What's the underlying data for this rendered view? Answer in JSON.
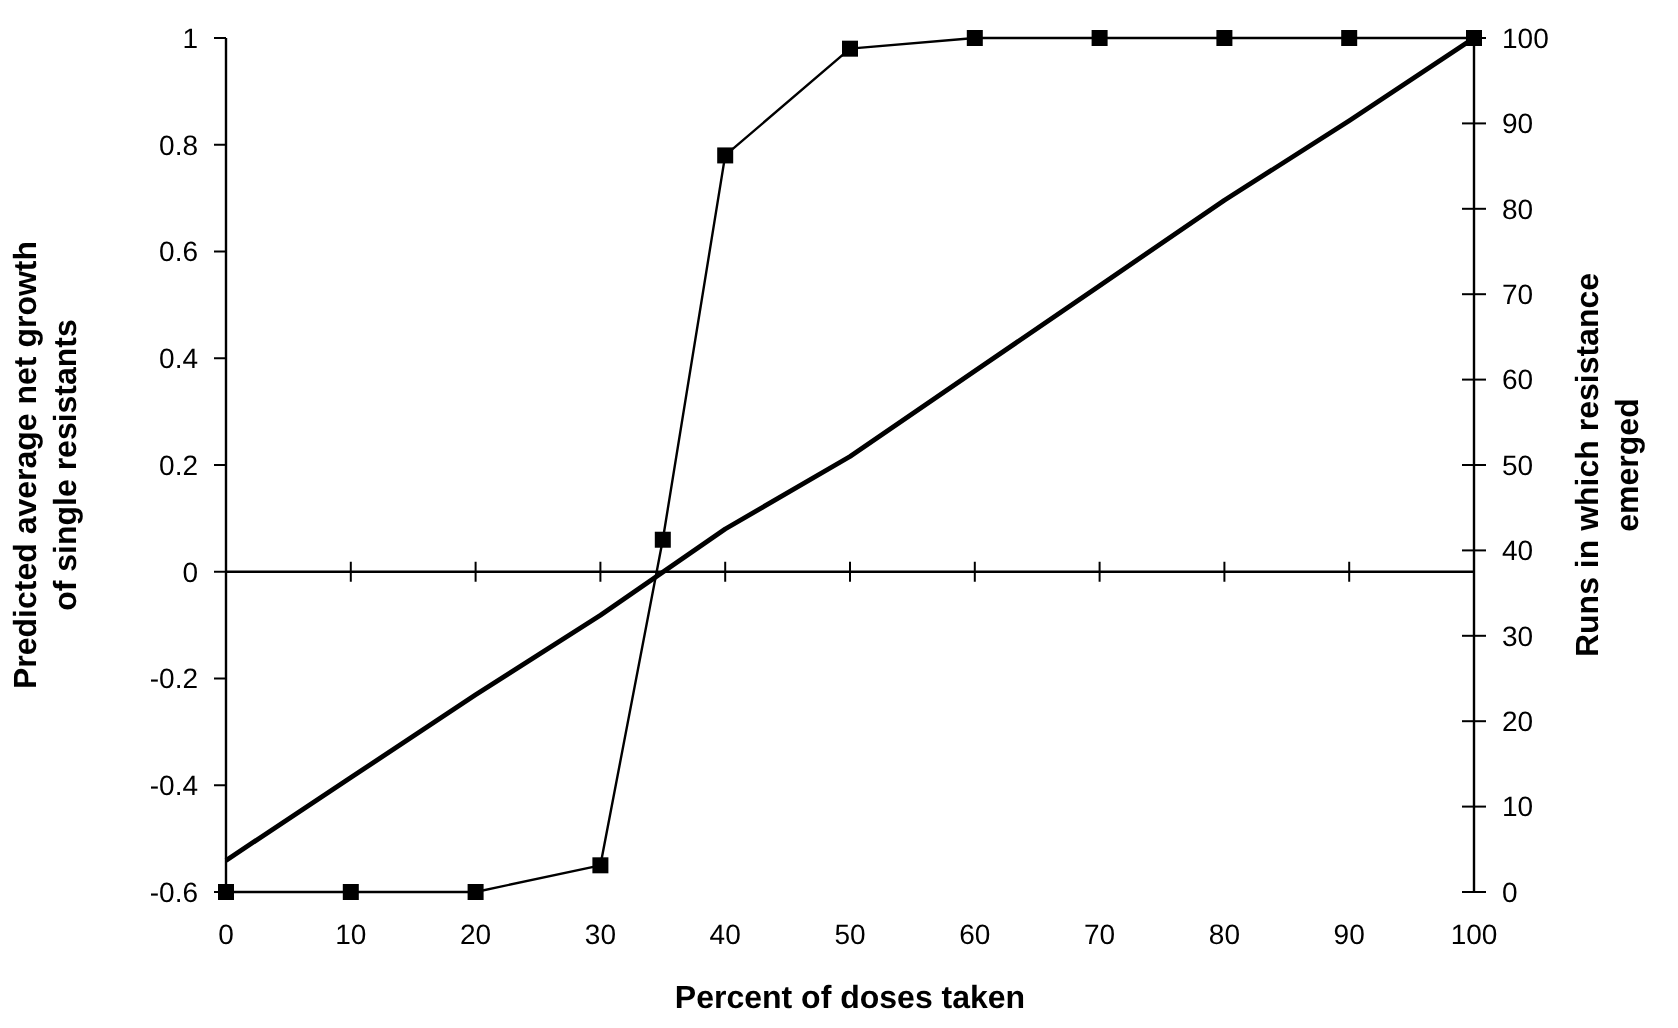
{
  "chart_data": {
    "type": "line",
    "xlabel": "Percent of doses taken",
    "ylabel": "Predicted average net growth of single resistants",
    "y2label": "Runs in which resistance emerged",
    "xlim": [
      0,
      100
    ],
    "xticks": [
      0,
      10,
      20,
      30,
      40,
      50,
      60,
      70,
      80,
      90,
      100
    ],
    "ylim": [
      -0.6,
      1
    ],
    "yticks": [
      -0.6,
      -0.4,
      -0.2,
      0,
      0.2,
      0.4,
      0.6,
      0.8,
      1
    ],
    "y2lim": [
      0,
      100
    ],
    "y2ticks": [
      0,
      10,
      20,
      30,
      40,
      50,
      60,
      70,
      80,
      90,
      100
    ],
    "series": [
      {
        "color": "#000000",
        "marker": "square",
        "x": [
          0,
          10,
          20,
          30,
          35,
          40,
          50,
          60,
          70,
          80,
          90,
          100
        ],
        "values": [
          -0.6,
          -0.6,
          -0.6,
          -0.55,
          0.06,
          0.78,
          0.98,
          1,
          1,
          1,
          1,
          1
        ]
      },
      {
        "color": "#000000",
        "marker": "none",
        "axis": "y2",
        "x": [
          0,
          10,
          20,
          30,
          40,
          50,
          60,
          70,
          80,
          90,
          100
        ],
        "values": [
          3.7,
          13.4,
          23.1,
          32.4,
          42.5,
          51,
          61,
          71,
          81,
          90.3,
          100
        ]
      }
    ]
  }
}
